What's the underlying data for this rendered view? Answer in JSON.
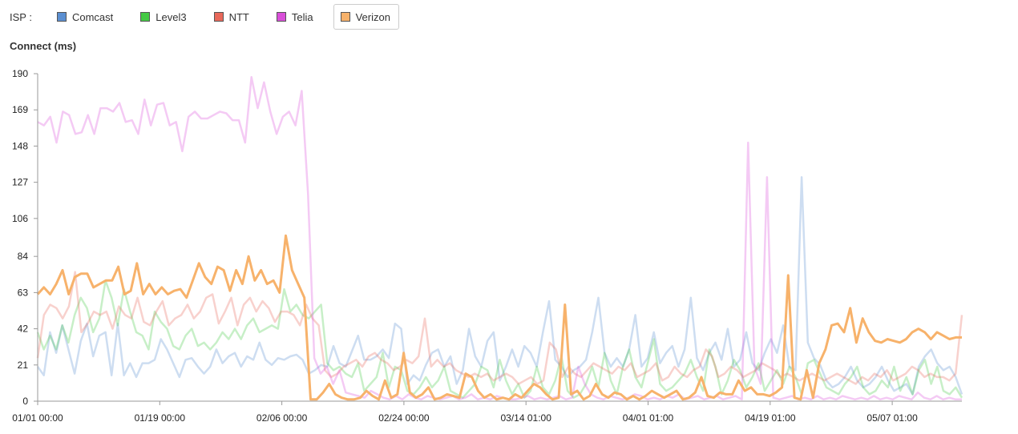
{
  "legend": {
    "label": "ISP :",
    "items": [
      {
        "name": "Comcast",
        "color": "#5b8fd1"
      },
      {
        "name": "Level3",
        "color": "#44c944"
      },
      {
        "name": "NTT",
        "color": "#e8685a"
      },
      {
        "name": "Telia",
        "color": "#d94fd9"
      },
      {
        "name": "Verizon",
        "color": "#f7b26b",
        "selected": true
      }
    ]
  },
  "chart_data": {
    "type": "line",
    "title": "",
    "ylabel": "Connect (ms)",
    "xlabel": "",
    "ylim": [
      0,
      190
    ],
    "yticks": [
      0,
      21,
      42,
      63,
      84,
      106,
      127,
      148,
      169,
      190
    ],
    "x_ticks": [
      "01/01 00:00",
      "01/19 00:00",
      "02/06 00:00",
      "02/24 00:00",
      "03/14 01:00",
      "04/01 01:00",
      "04/19 01:00",
      "05/07 01:00"
    ],
    "x_range": [
      "01/01 00:00",
      "05/21 01:00"
    ],
    "highlighted_series": "Verizon",
    "series": [
      {
        "name": "Comcast",
        "values": [
          20,
          15,
          40,
          28,
          44,
          30,
          16,
          35,
          45,
          26,
          38,
          40,
          15,
          45,
          15,
          22,
          14,
          22,
          22,
          24,
          36,
          30,
          22,
          14,
          24,
          25,
          20,
          16,
          20,
          30,
          22,
          26,
          28,
          20,
          26,
          24,
          34,
          24,
          21,
          25,
          24,
          26,
          27,
          24,
          16,
          18,
          21,
          20,
          32,
          22,
          20,
          29,
          38,
          24,
          24,
          26,
          30,
          25,
          45,
          42,
          10,
          15,
          12,
          21,
          28,
          30,
          20,
          26,
          10,
          18,
          42,
          26,
          20,
          35,
          40,
          12,
          20,
          30,
          20,
          32,
          28,
          20,
          40,
          58,
          24,
          20,
          14,
          18,
          20,
          24,
          40,
          60,
          28,
          20,
          25,
          20,
          30,
          50,
          20,
          25,
          40,
          22,
          28,
          32,
          20,
          30,
          60,
          25,
          18,
          28,
          34,
          24,
          42,
          20,
          24,
          40,
          22,
          18,
          28,
          36,
          28,
          44,
          20,
          18,
          130,
          34,
          25,
          21,
          12,
          8,
          10,
          14,
          20,
          12,
          8,
          10,
          14,
          20,
          12,
          6,
          8,
          10,
          4,
          20,
          26,
          30,
          22,
          18,
          20,
          14,
          4
        ]
      },
      {
        "name": "Level3",
        "values": [
          40,
          30,
          38,
          30,
          44,
          34,
          50,
          60,
          54,
          40,
          48,
          70,
          60,
          44,
          65,
          52,
          40,
          38,
          30,
          52,
          46,
          42,
          32,
          30,
          38,
          42,
          32,
          34,
          30,
          34,
          40,
          36,
          42,
          36,
          44,
          48,
          40,
          42,
          44,
          42,
          65,
          52,
          56,
          50,
          48,
          52,
          56,
          22,
          18,
          20,
          16,
          14,
          22,
          6,
          10,
          14,
          28,
          8,
          20,
          18,
          6,
          4,
          8,
          14,
          8,
          12,
          20,
          6,
          4,
          2,
          6,
          10,
          20,
          18,
          8,
          24,
          12,
          4,
          10,
          2,
          6,
          20,
          8,
          4,
          12,
          26,
          6,
          2,
          4,
          10,
          20,
          8,
          28,
          12,
          4,
          20,
          30,
          14,
          8,
          22,
          36,
          10,
          6,
          8,
          12,
          16,
          24,
          14,
          6,
          30,
          20,
          4,
          12,
          24,
          18,
          8,
          14,
          22,
          6,
          12,
          18,
          10,
          20,
          14,
          4,
          22,
          24,
          16,
          8,
          6,
          4,
          10,
          14,
          20,
          8,
          4,
          6,
          12,
          8,
          20,
          6,
          14,
          4,
          18,
          24,
          10,
          20,
          6,
          4,
          8,
          2
        ]
      },
      {
        "name": "NTT",
        "values": [
          25,
          50,
          56,
          54,
          48,
          55,
          75,
          40,
          45,
          52,
          50,
          52,
          42,
          55,
          50,
          48,
          60,
          46,
          44,
          52,
          58,
          44,
          48,
          50,
          56,
          48,
          52,
          60,
          62,
          45,
          52,
          60,
          44,
          56,
          60,
          52,
          58,
          54,
          46,
          52,
          52,
          50,
          44,
          56,
          48,
          44,
          18,
          14,
          16,
          20,
          22,
          24,
          20,
          26,
          28,
          24,
          22,
          18,
          20,
          24,
          22,
          26,
          48,
          20,
          24,
          20,
          22,
          18,
          16,
          14,
          16,
          14,
          16,
          12,
          14,
          16,
          14,
          10,
          12,
          14,
          10,
          12,
          34,
          30,
          14,
          20,
          16,
          14,
          18,
          22,
          20,
          18,
          16,
          20,
          18,
          22,
          14,
          16,
          18,
          22,
          12,
          14,
          20,
          16,
          14,
          18,
          20,
          30,
          26,
          14,
          16,
          20,
          18,
          14,
          16,
          18,
          22,
          20,
          18,
          14,
          16,
          14,
          12,
          14,
          16,
          14,
          12,
          14,
          16,
          14,
          12,
          10,
          14,
          12,
          16,
          14,
          18,
          12,
          14,
          16,
          20,
          18,
          14,
          16,
          14,
          14,
          12,
          16,
          50
        ]
      },
      {
        "name": "Telia",
        "values": [
          162,
          160,
          165,
          150,
          168,
          166,
          155,
          156,
          166,
          155,
          170,
          170,
          168,
          173,
          162,
          163,
          155,
          175,
          160,
          172,
          173,
          160,
          162,
          145,
          165,
          168,
          164,
          164,
          166,
          168,
          167,
          163,
          163,
          150,
          188,
          170,
          185,
          168,
          155,
          165,
          168,
          160,
          180,
          120,
          25,
          16,
          20,
          10,
          18,
          5,
          4,
          3,
          2,
          6,
          4,
          2,
          1,
          3,
          1,
          4,
          2,
          1,
          3,
          2,
          1,
          2,
          3,
          1,
          2,
          4,
          1,
          2,
          1,
          3,
          2,
          1,
          1,
          2,
          3,
          1,
          2,
          1,
          2,
          3,
          1,
          2,
          20,
          10,
          4,
          2,
          1,
          3,
          2,
          1,
          2,
          4,
          3,
          1,
          2,
          1,
          3,
          2,
          4,
          1,
          2,
          3,
          1,
          2,
          3,
          1,
          2,
          3,
          1,
          150,
          20,
          10,
          130,
          2,
          1,
          2,
          3,
          1,
          2,
          1,
          3,
          1,
          2,
          1,
          3,
          2,
          1,
          2,
          1,
          3,
          1,
          2,
          1,
          3,
          2,
          1,
          5,
          2,
          1,
          3,
          1,
          2,
          1,
          1
        ]
      },
      {
        "name": "Verizon",
        "values": [
          62,
          66,
          62,
          68,
          76,
          62,
          72,
          74,
          74,
          66,
          68,
          70,
          70,
          78,
          62,
          64,
          80,
          62,
          68,
          62,
          66,
          62,
          64,
          65,
          60,
          70,
          80,
          72,
          68,
          78,
          76,
          64,
          76,
          68,
          84,
          70,
          76,
          68,
          70,
          63,
          96,
          76,
          68,
          60,
          1,
          1,
          5,
          10,
          4,
          2,
          1,
          1,
          2,
          6,
          3,
          1,
          12,
          2,
          4,
          28,
          5,
          2,
          4,
          8,
          1,
          2,
          4,
          3,
          2,
          16,
          14,
          6,
          2,
          4,
          1,
          2,
          1,
          4,
          2,
          6,
          10,
          8,
          4,
          1,
          2,
          56,
          4,
          6,
          1,
          3,
          10,
          4,
          2,
          5,
          4,
          1,
          3,
          1,
          3,
          6,
          4,
          2,
          4,
          6,
          1,
          2,
          5,
          14,
          3,
          2,
          5,
          4,
          4,
          12,
          6,
          8,
          4,
          4,
          3,
          5,
          8,
          73,
          2,
          1,
          18,
          2,
          22,
          30,
          44,
          45,
          40,
          54,
          34,
          48,
          40,
          35,
          34,
          36,
          35,
          34,
          36,
          40,
          42,
          40,
          36,
          40,
          38,
          36,
          37,
          37
        ]
      }
    ]
  }
}
